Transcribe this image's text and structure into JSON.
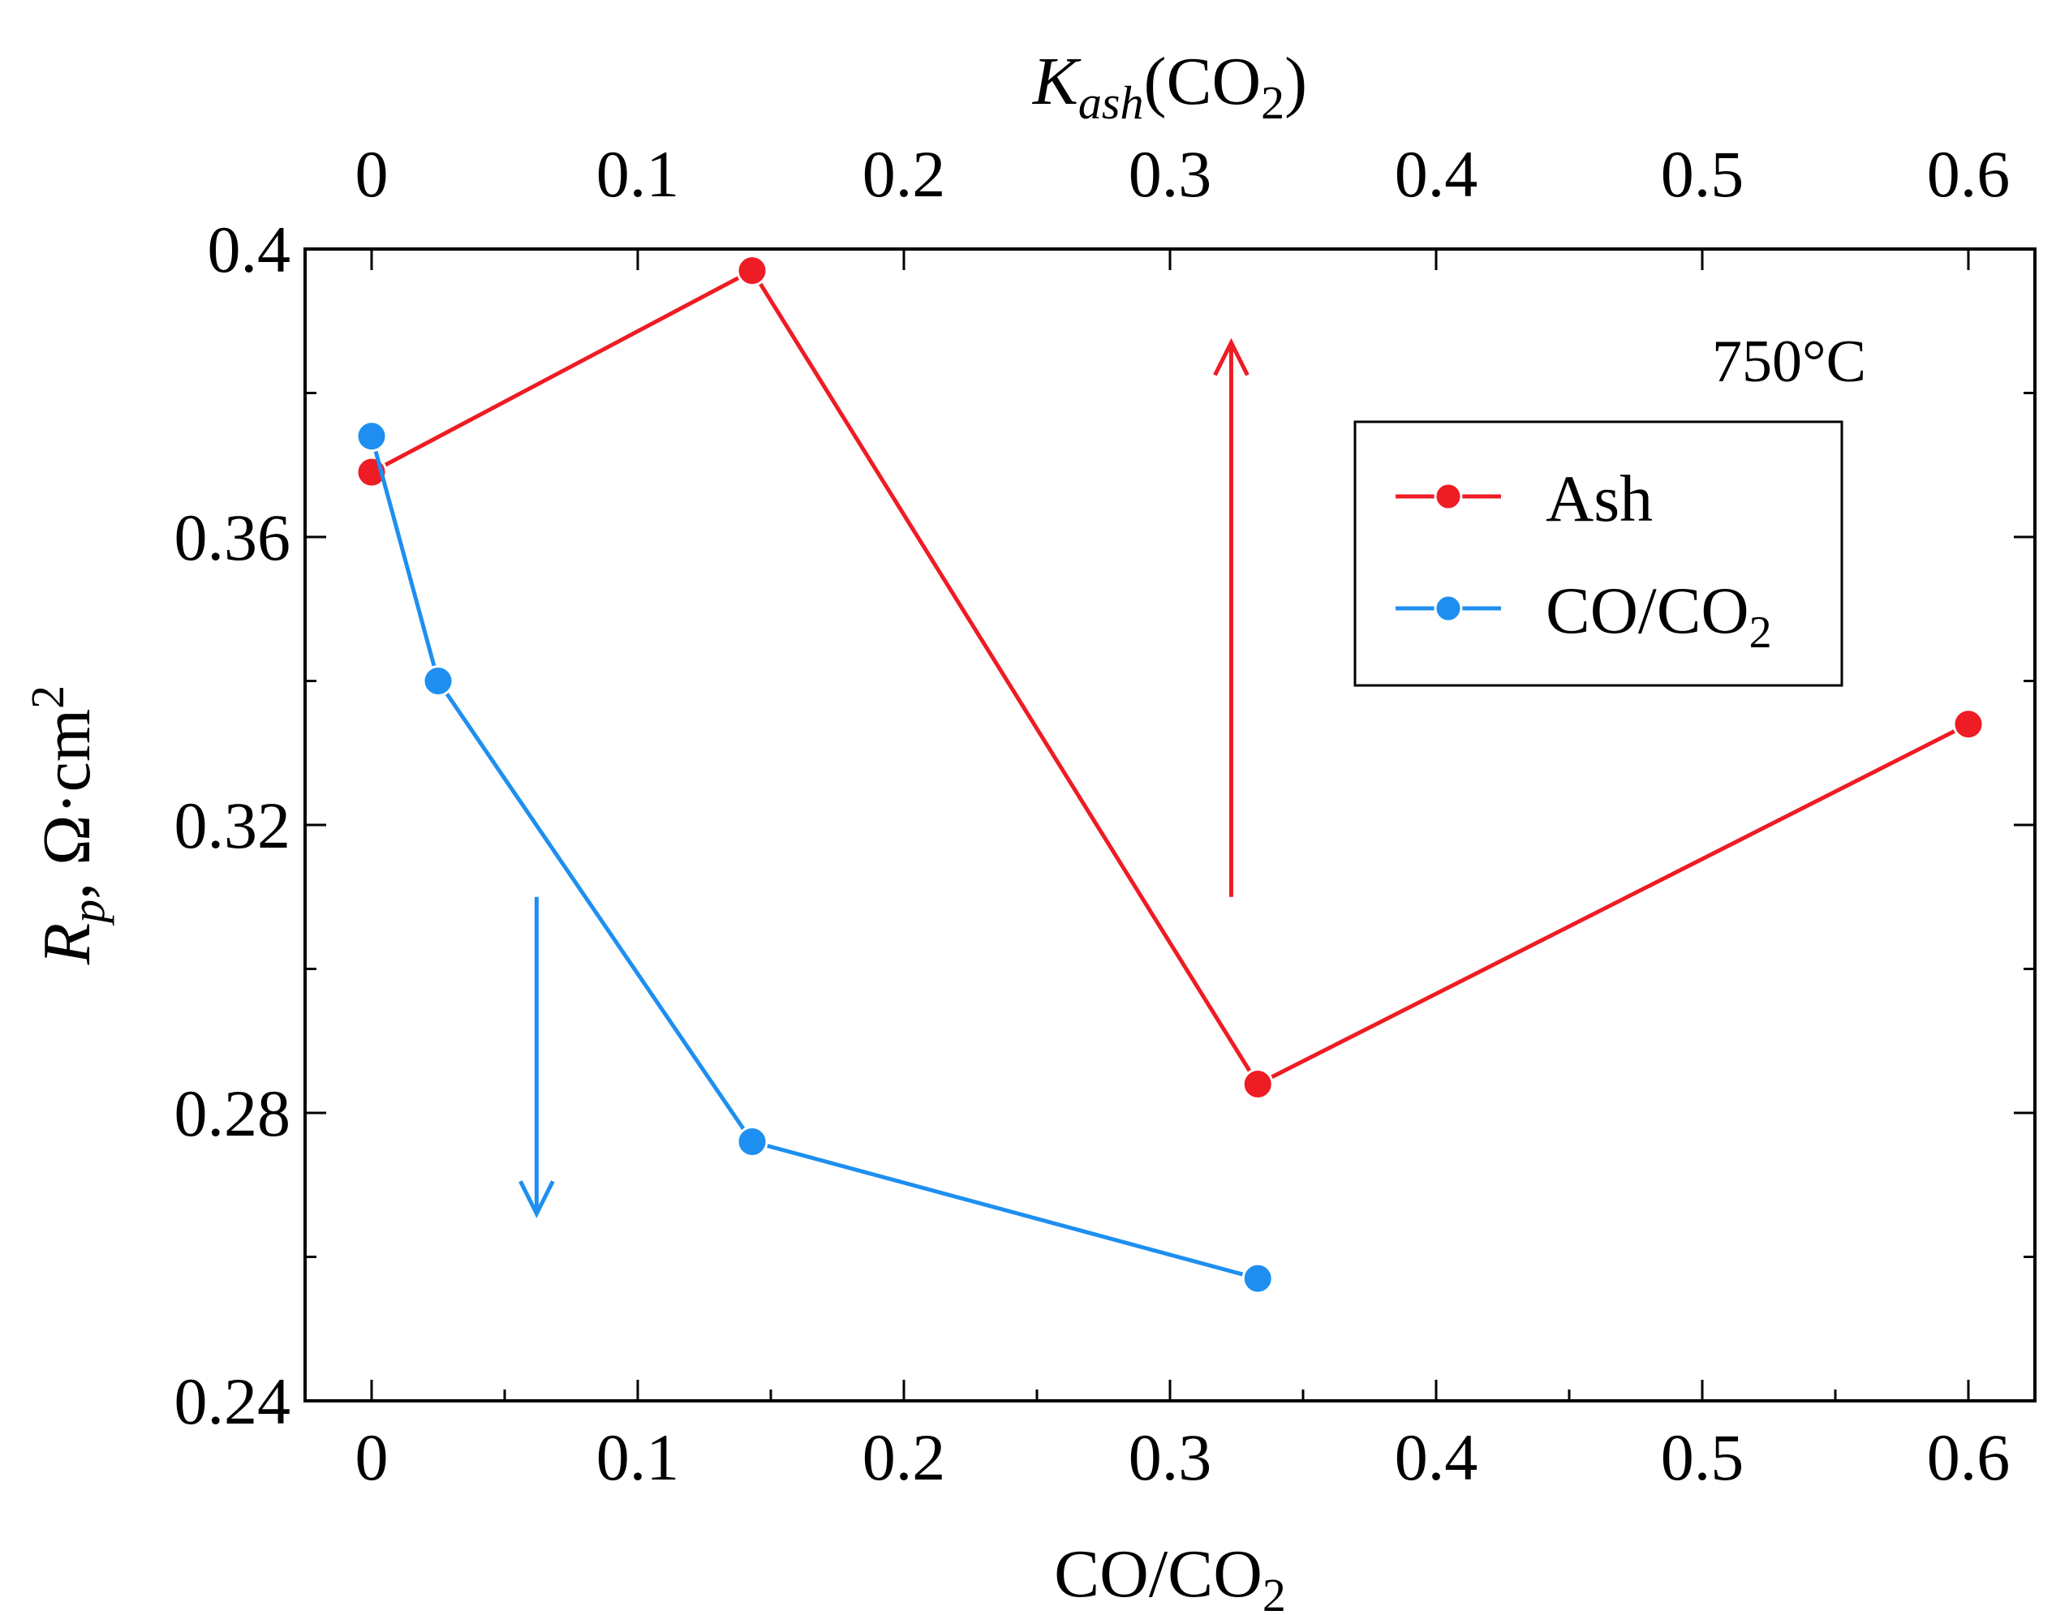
{
  "chart_data": {
    "type": "line",
    "annotation": "750°C",
    "x_bottom": {
      "label_main": "CO/CO",
      "label_sub": "2",
      "lim": [
        -0.025,
        0.625
      ],
      "ticks": [
        0,
        0.1,
        0.2,
        0.3,
        0.4,
        0.5,
        0.6
      ],
      "tick_labels": [
        "0",
        "0.1",
        "0.2",
        "0.3",
        "0.4",
        "0.5",
        "0.6"
      ],
      "minor_ticks": [
        0.05,
        0.15,
        0.25,
        0.35,
        0.45,
        0.55
      ]
    },
    "x_top": {
      "label_main": "K",
      "label_sub_italic": "ash",
      "label_paren": "(CO",
      "label_sub2": "2",
      "label_close": ")",
      "lim": [
        -0.025,
        0.625
      ],
      "ticks": [
        0,
        0.1,
        0.2,
        0.3,
        0.4,
        0.5,
        0.6
      ],
      "tick_labels": [
        "0",
        "0.1",
        "0.2",
        "0.3",
        "0.4",
        "0.5",
        "0.6"
      ]
    },
    "y": {
      "label_main": "R",
      "label_sub": "p",
      "label_unit": ", Ω·cm",
      "label_sup": "2",
      "lim": [
        0.24,
        0.4
      ],
      "ticks": [
        0.24,
        0.28,
        0.32,
        0.36,
        0.4
      ],
      "tick_labels": [
        "0.24",
        "0.28",
        "0.32",
        "0.36",
        "0.4"
      ],
      "minor_ticks": [
        0.26,
        0.3,
        0.34,
        0.38
      ]
    },
    "series": [
      {
        "name": "Ash",
        "color": "#ee1c24",
        "x": [
          0,
          0.143,
          0.333,
          0.6
        ],
        "y": [
          0.369,
          0.397,
          0.284,
          0.334
        ]
      },
      {
        "name": "CO/CO2",
        "legend_main": "CO/CO",
        "legend_sub": "2",
        "color": "#1e8ff0",
        "x": [
          0,
          0.025,
          0.143,
          0.333
        ],
        "y": [
          0.374,
          0.34,
          0.276,
          0.257
        ]
      }
    ],
    "arrows": [
      {
        "color": "#ee1c24",
        "x": 0.323,
        "y_from": 0.31,
        "y_to": 0.387,
        "direction": "up"
      },
      {
        "color": "#1e8ff0",
        "x": 0.062,
        "y_from": 0.31,
        "y_to": 0.266,
        "direction": "down"
      }
    ],
    "legend_position": "upper-right"
  }
}
